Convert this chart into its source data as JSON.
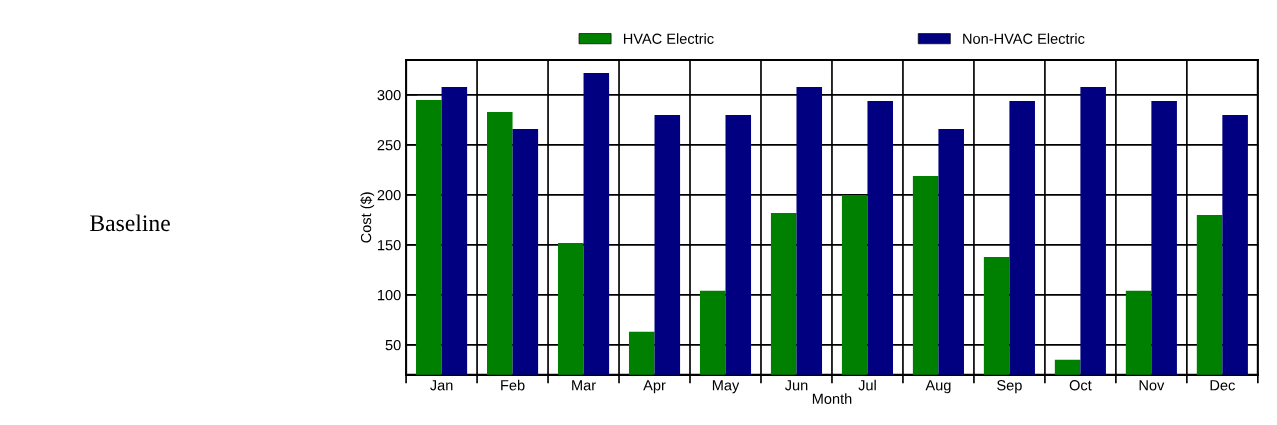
{
  "chart_data": {
    "type": "bar",
    "categories": [
      "Jan",
      "Feb",
      "Mar",
      "Apr",
      "May",
      "Jun",
      "Jul",
      "Aug",
      "Sep",
      "Oct",
      "Nov",
      "Dec"
    ],
    "series": [
      {
        "name": "HVAC Electric",
        "color": "#008000",
        "values": [
          295,
          283,
          152,
          63,
          104,
          182,
          200,
          219,
          138,
          35,
          104,
          180
        ]
      },
      {
        "name": "Non-HVAC Electric",
        "color": "#000080",
        "values": [
          308,
          266,
          322,
          280,
          280,
          308,
          294,
          266,
          294,
          308,
          294,
          280
        ]
      }
    ],
    "xlabel": "Month",
    "ylabel": "Cost ($)",
    "ylim": [
      20,
      335
    ],
    "yticks": [
      50,
      100,
      150,
      200,
      250,
      300
    ],
    "grid": true,
    "legend": "top",
    "annotations": [
      "Baseline"
    ]
  }
}
